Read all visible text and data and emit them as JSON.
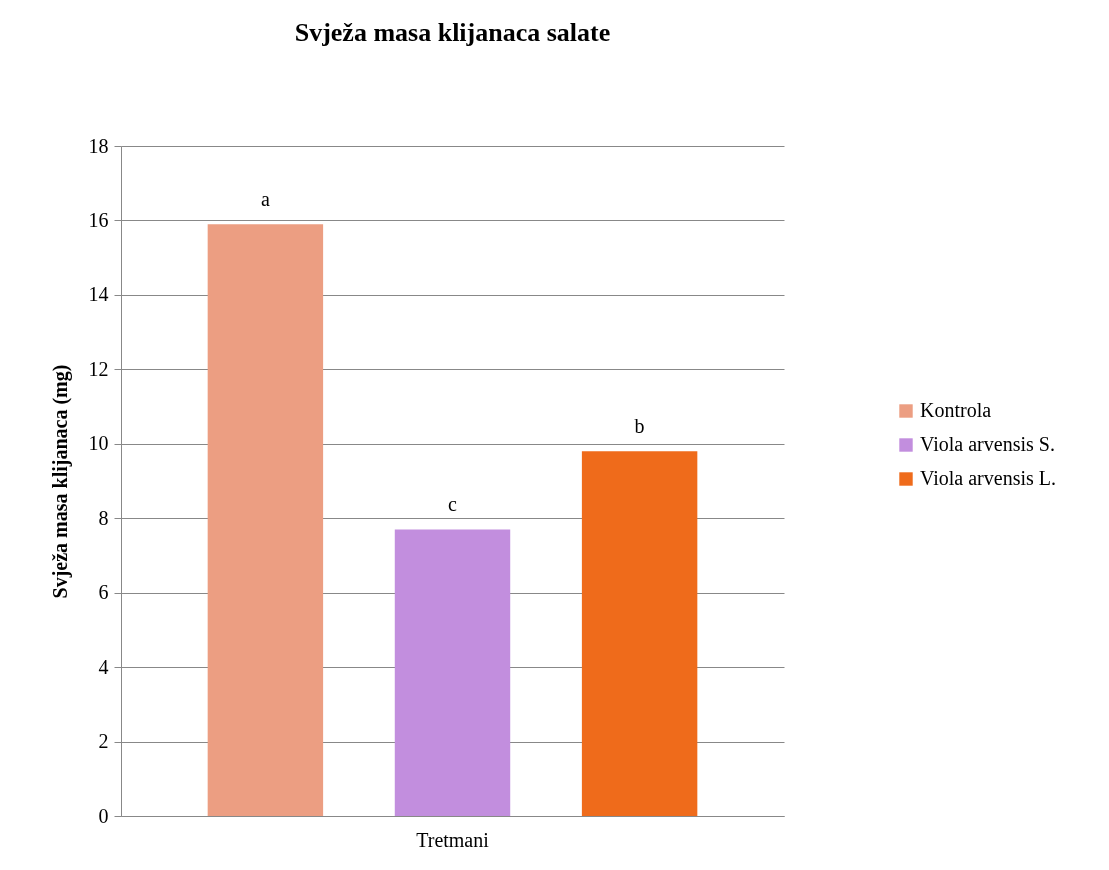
{
  "chart_data": {
    "type": "bar",
    "title": "Svježa masa klijanaca salate",
    "ylabel": "Svježa masa klijanaca (mg)",
    "categories": [
      "Tretmani"
    ],
    "series": [
      {
        "name": "Kontrola",
        "color": "#ec9e82",
        "values": [
          15.9
        ]
      },
      {
        "name": "Viola arvensis S.",
        "color": "#c28ede",
        "values": [
          7.7
        ]
      },
      {
        "name": "Viola arvensis L.",
        "color": "#ef6b1b",
        "values": [
          9.8
        ]
      }
    ],
    "annotations": [
      "a",
      "c",
      "b"
    ],
    "ylim": [
      0,
      18
    ],
    "yticks": [
      0,
      2,
      4,
      6,
      8,
      10,
      12,
      14,
      16,
      18
    ],
    "grid": "y",
    "legend": "right"
  }
}
